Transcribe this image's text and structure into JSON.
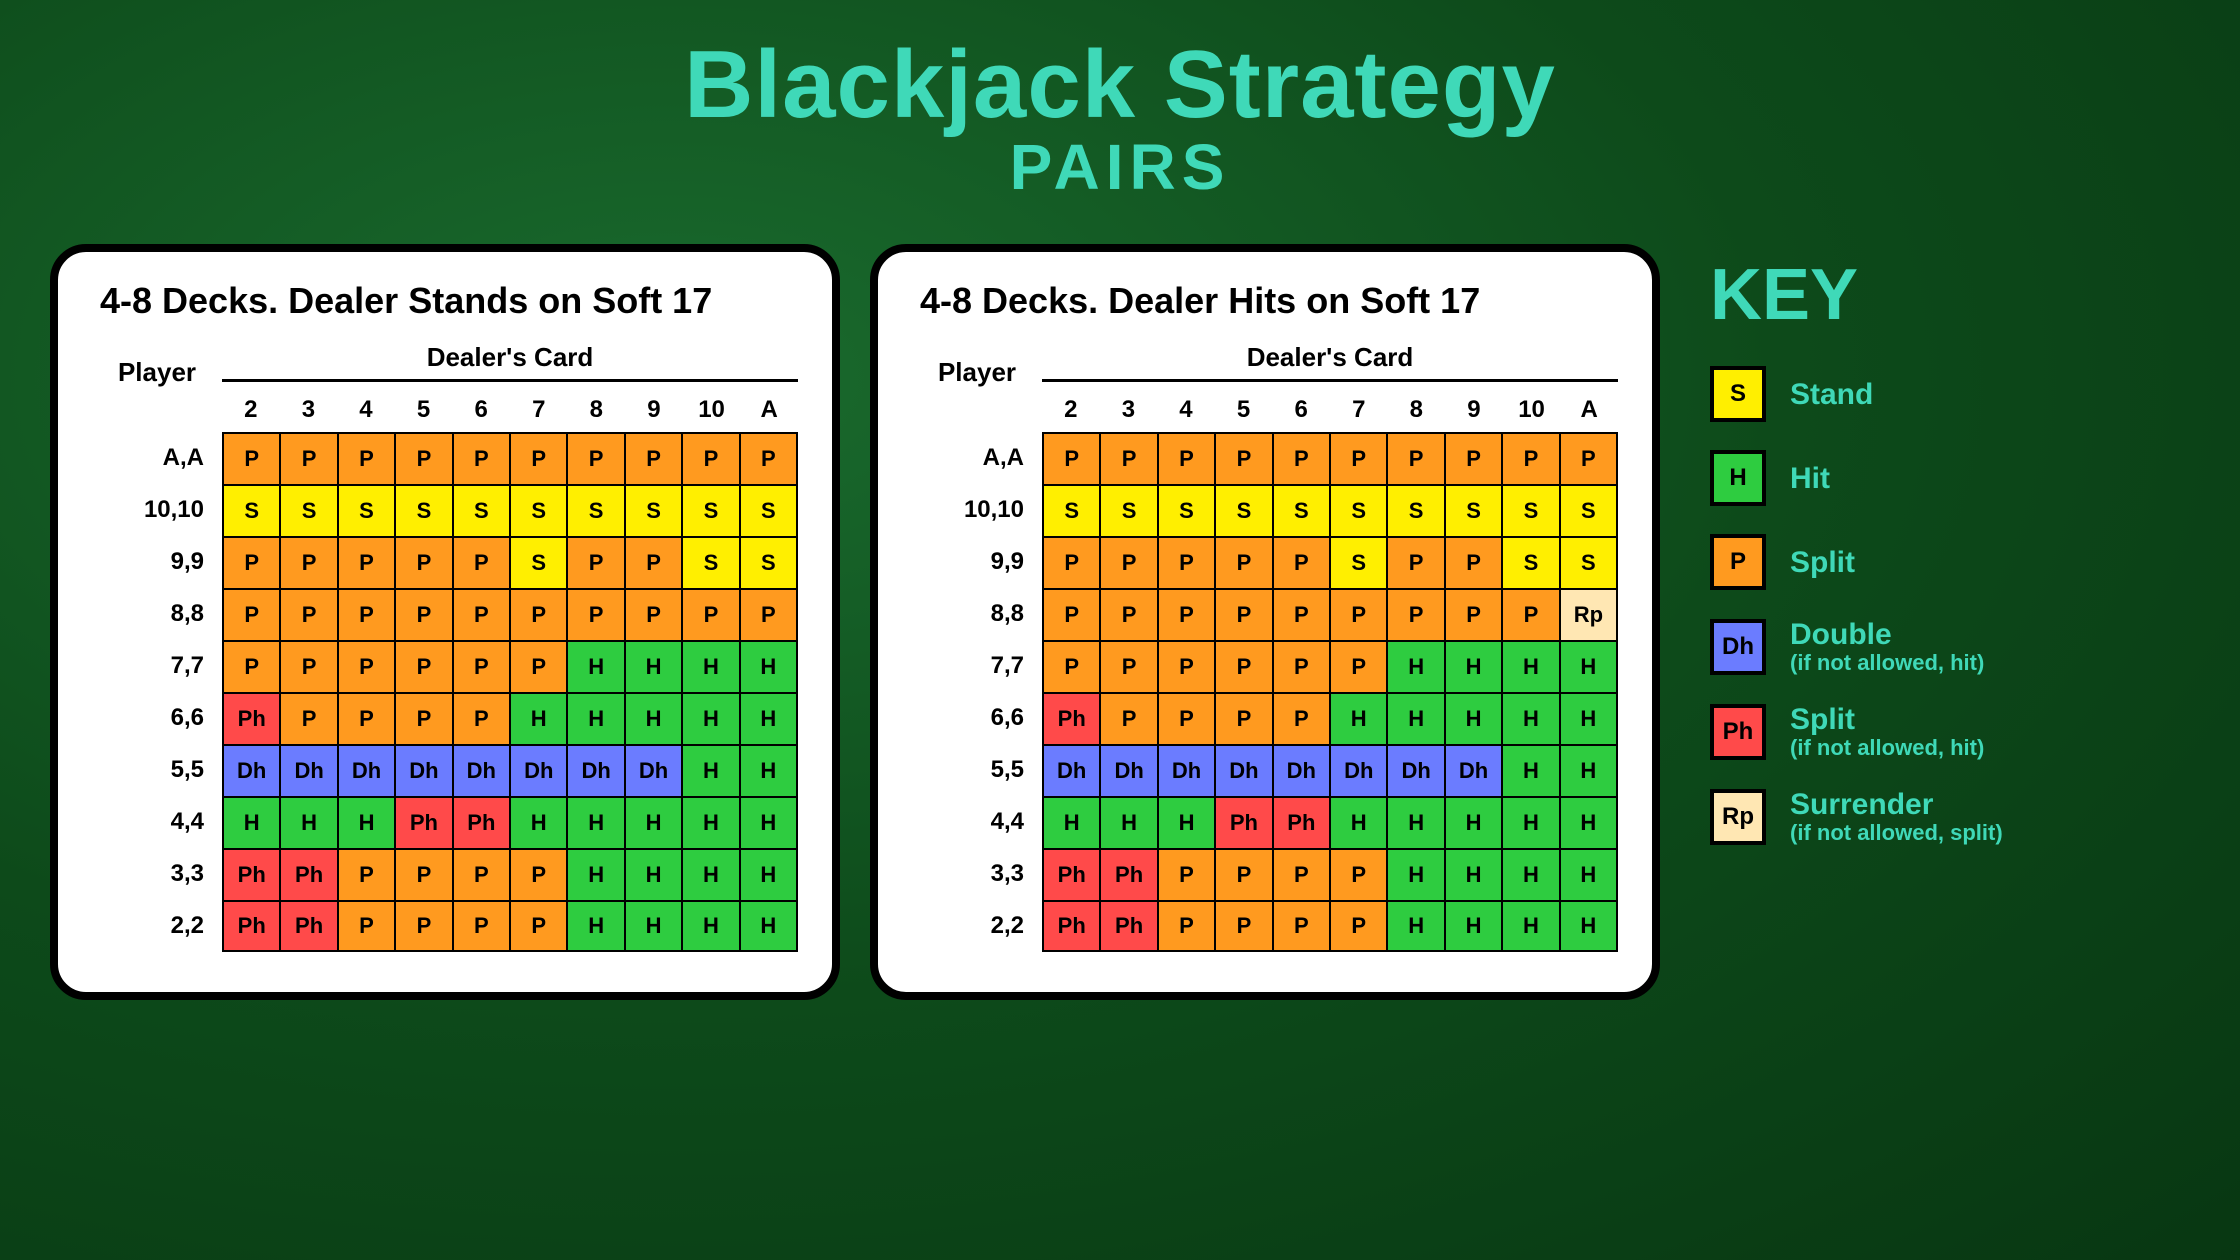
{
  "colors": {
    "accent": "#3fd9b8",
    "background_gradient": [
      "#1a6b2e",
      "#0d4a1a",
      "#083712"
    ],
    "card_bg": "#ffffff",
    "card_border": "#000000"
  },
  "title": "Blackjack Strategy",
  "subtitle": "PAIRS",
  "labels": {
    "player": "Player",
    "dealer": "Dealer's Card"
  },
  "dealer_columns": [
    "2",
    "3",
    "4",
    "5",
    "6",
    "7",
    "8",
    "9",
    "10",
    "A"
  ],
  "player_rows": [
    "A,A",
    "10,10",
    "9,9",
    "8,8",
    "7,7",
    "6,6",
    "5,5",
    "4,4",
    "3,3",
    "2,2"
  ],
  "actions": {
    "S": {
      "label": "Stand",
      "color": "#ffef00"
    },
    "H": {
      "label": "Hit",
      "color": "#2ecc40"
    },
    "P": {
      "label": "Split",
      "color": "#ff9a1f"
    },
    "Dh": {
      "label": "Double",
      "sublabel": "(if not allowed, hit)",
      "color": "#6b7cff"
    },
    "Ph": {
      "label": "Split",
      "sublabel": "(if not allowed, hit)",
      "color": "#ff4a4a"
    },
    "Rp": {
      "label": "Surrender",
      "sublabel": "(if not allowed, split)",
      "color": "#ffe7b3"
    }
  },
  "key_order": [
    "S",
    "H",
    "P",
    "Dh",
    "Ph",
    "Rp"
  ],
  "key_title": "KEY",
  "tables": [
    {
      "title": "4-8 Decks. Dealer Stands on Soft 17",
      "rows": [
        [
          "P",
          "P",
          "P",
          "P",
          "P",
          "P",
          "P",
          "P",
          "P",
          "P"
        ],
        [
          "S",
          "S",
          "S",
          "S",
          "S",
          "S",
          "S",
          "S",
          "S",
          "S"
        ],
        [
          "P",
          "P",
          "P",
          "P",
          "P",
          "S",
          "P",
          "P",
          "S",
          "S"
        ],
        [
          "P",
          "P",
          "P",
          "P",
          "P",
          "P",
          "P",
          "P",
          "P",
          "P"
        ],
        [
          "P",
          "P",
          "P",
          "P",
          "P",
          "P",
          "H",
          "H",
          "H",
          "H"
        ],
        [
          "Ph",
          "P",
          "P",
          "P",
          "P",
          "H",
          "H",
          "H",
          "H",
          "H"
        ],
        [
          "Dh",
          "Dh",
          "Dh",
          "Dh",
          "Dh",
          "Dh",
          "Dh",
          "Dh",
          "H",
          "H"
        ],
        [
          "H",
          "H",
          "H",
          "Ph",
          "Ph",
          "H",
          "H",
          "H",
          "H",
          "H"
        ],
        [
          "Ph",
          "Ph",
          "P",
          "P",
          "P",
          "P",
          "H",
          "H",
          "H",
          "H"
        ],
        [
          "Ph",
          "Ph",
          "P",
          "P",
          "P",
          "P",
          "H",
          "H",
          "H",
          "H"
        ]
      ]
    },
    {
      "title": "4-8 Decks. Dealer Hits on Soft 17",
      "rows": [
        [
          "P",
          "P",
          "P",
          "P",
          "P",
          "P",
          "P",
          "P",
          "P",
          "P"
        ],
        [
          "S",
          "S",
          "S",
          "S",
          "S",
          "S",
          "S",
          "S",
          "S",
          "S"
        ],
        [
          "P",
          "P",
          "P",
          "P",
          "P",
          "S",
          "P",
          "P",
          "S",
          "S"
        ],
        [
          "P",
          "P",
          "P",
          "P",
          "P",
          "P",
          "P",
          "P",
          "P",
          "Rp"
        ],
        [
          "P",
          "P",
          "P",
          "P",
          "P",
          "P",
          "H",
          "H",
          "H",
          "H"
        ],
        [
          "Ph",
          "P",
          "P",
          "P",
          "P",
          "H",
          "H",
          "H",
          "H",
          "H"
        ],
        [
          "Dh",
          "Dh",
          "Dh",
          "Dh",
          "Dh",
          "Dh",
          "Dh",
          "Dh",
          "H",
          "H"
        ],
        [
          "H",
          "H",
          "H",
          "Ph",
          "Ph",
          "H",
          "H",
          "H",
          "H",
          "H"
        ],
        [
          "Ph",
          "Ph",
          "P",
          "P",
          "P",
          "P",
          "H",
          "H",
          "H",
          "H"
        ],
        [
          "Ph",
          "Ph",
          "P",
          "P",
          "P",
          "P",
          "H",
          "H",
          "H",
          "H"
        ]
      ]
    }
  ]
}
